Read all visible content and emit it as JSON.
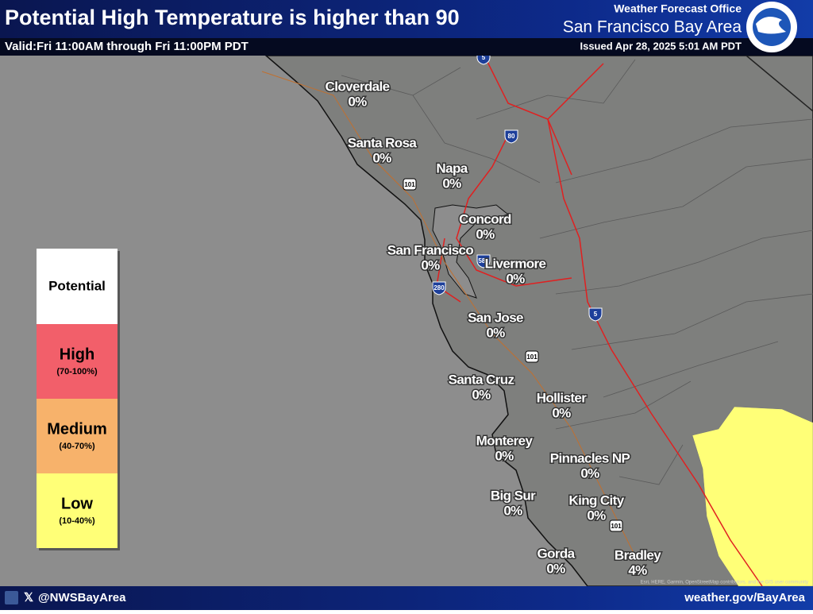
{
  "header": {
    "title": "Potential High Temperature is higher than 90",
    "valid": "Valid:Fri 11:00AM through Fri 11:00PM PDT",
    "office": "Weather Forecast Office",
    "area": "San Francisco Bay Area",
    "issued": "Issued Apr 28, 2025 5:01 AM PDT"
  },
  "legend": {
    "title": "Potential",
    "levels": [
      {
        "label": "High",
        "range": "(70-100%)"
      },
      {
        "label": "Medium",
        "range": "(40-70%)"
      },
      {
        "label": "Low",
        "range": "(10-40%)"
      }
    ]
  },
  "cities": [
    {
      "name": "Cloverdale",
      "value": "0%"
    },
    {
      "name": "Santa Rosa",
      "value": "0%"
    },
    {
      "name": "Napa",
      "value": "0%"
    },
    {
      "name": "Concord",
      "value": "0%"
    },
    {
      "name": "San Francisco",
      "value": "0%"
    },
    {
      "name": "Livermore",
      "value": "0%"
    },
    {
      "name": "San Jose",
      "value": "0%"
    },
    {
      "name": "Santa Cruz",
      "value": "0%"
    },
    {
      "name": "Hollister",
      "value": "0%"
    },
    {
      "name": "Monterey",
      "value": "0%"
    },
    {
      "name": "Pinnacles NP",
      "value": "0%"
    },
    {
      "name": "Big Sur",
      "value": "0%"
    },
    {
      "name": "King City",
      "value": "0%"
    },
    {
      "name": "Gorda",
      "value": "0%"
    },
    {
      "name": "Bradley",
      "value": "4%"
    }
  ],
  "highways": [
    "5",
    "80",
    "101",
    "580",
    "280",
    "5",
    "101",
    "101"
  ],
  "footer": {
    "handle": "@NWSBayArea",
    "url": "weather.gov/BayArea",
    "attribution": "Esri, HERE, Garmin, OpenStreetMap contributors, and the GIS user community"
  }
}
